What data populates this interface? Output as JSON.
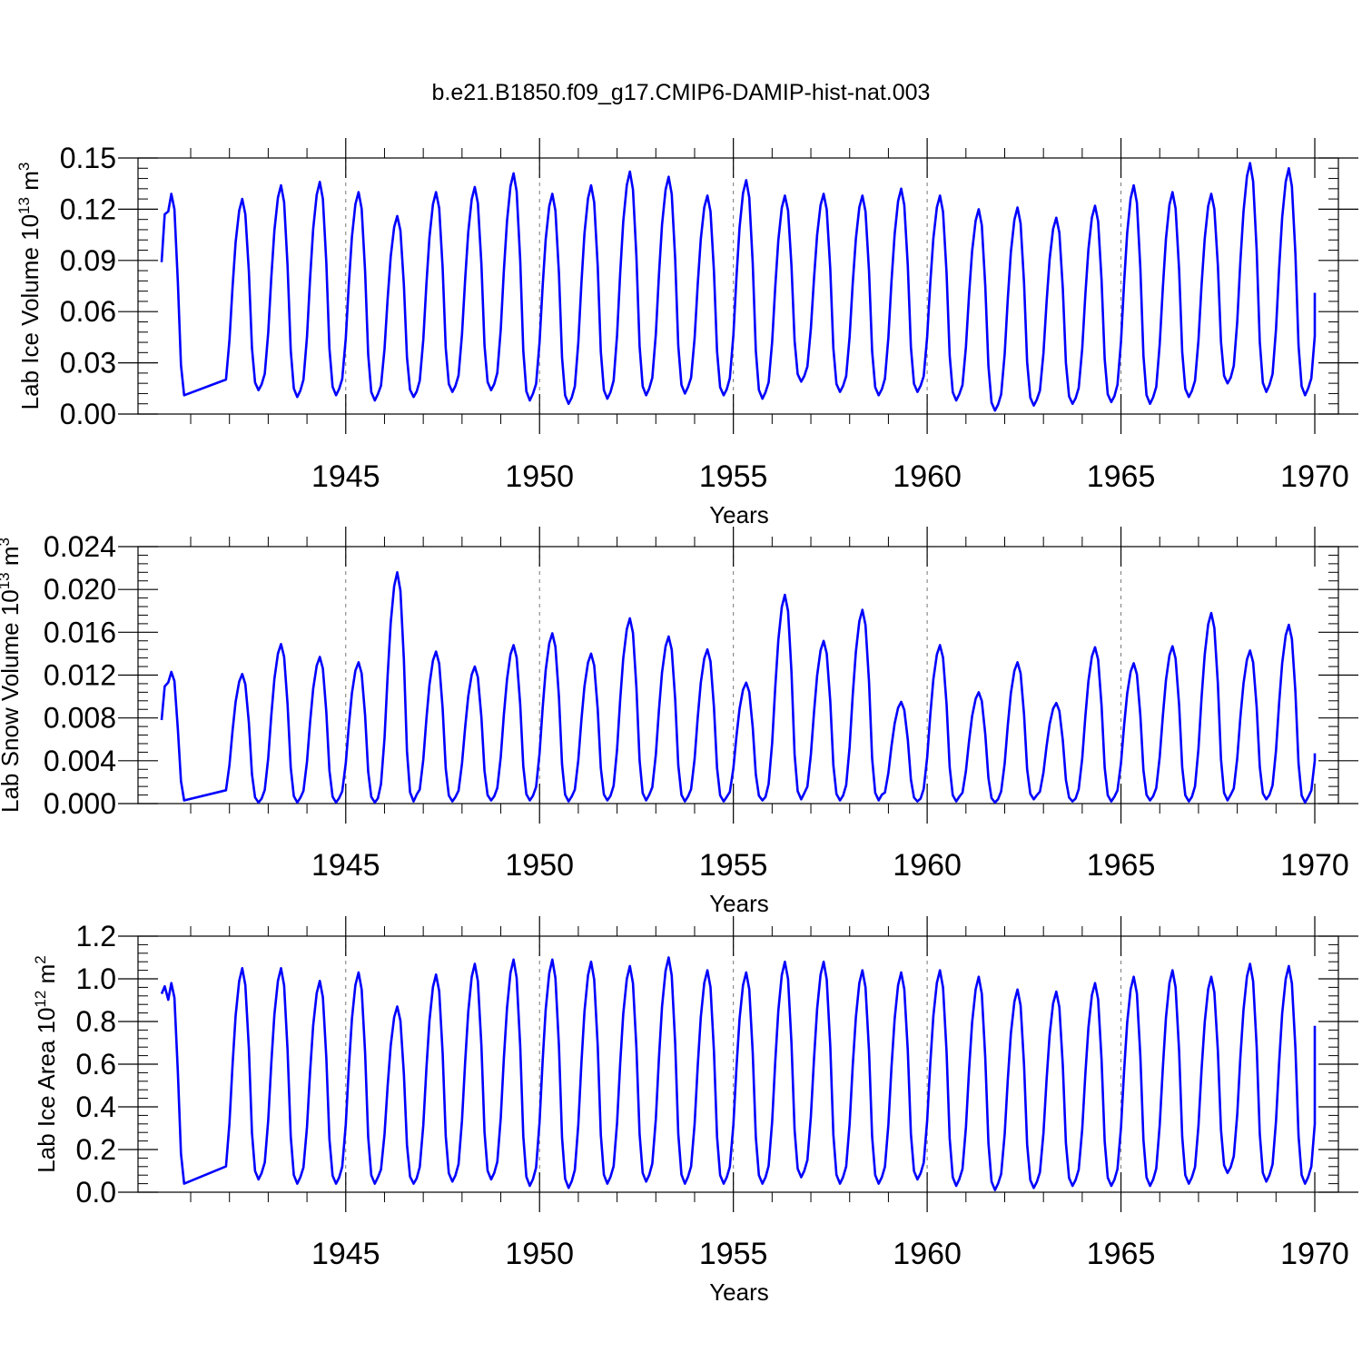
{
  "title": "b.e21.B1850.f09_g17.CMIP6-DAMIP-hist-nat.003",
  "style": {
    "line_color": "#0000ff",
    "frame_color": "#000000",
    "grid_color": "#777777"
  },
  "chart_data": [
    {
      "type": "line",
      "name": "ice-volume",
      "ylabel": "Lab Ice Volume 10",
      "ylabel_exp": "13",
      "ylabel_unit": " m",
      "ylabel_unit_exp": "3",
      "xlabel": "Years",
      "xlim": [
        1940.25,
        1970
      ],
      "ylim": [
        0,
        0.15
      ],
      "yticks": [
        "0.00",
        "0.03",
        "0.06",
        "0.09",
        "0.12",
        "0.15"
      ],
      "ytick_values": [
        0,
        0.03,
        0.06,
        0.09,
        0.12,
        0.15
      ],
      "xticks": [
        "1945",
        "1950",
        "1955",
        "1960",
        "1965",
        "1970"
      ],
      "xtick_values": [
        1945,
        1950,
        1955,
        1960,
        1965,
        1970
      ],
      "vgrid": [
        1945,
        1950,
        1955,
        1960,
        1965
      ],
      "peaks": [
        0.129,
        0.126,
        0.134,
        0.136,
        0.13,
        0.116,
        0.13,
        0.133,
        0.141,
        0.129,
        0.134,
        0.142,
        0.139,
        0.128,
        0.137,
        0.128,
        0.129,
        0.128,
        0.132,
        0.128,
        0.12,
        0.121,
        0.115,
        0.122,
        0.134,
        0.13,
        0.129,
        0.147,
        0.144,
        0.135
      ],
      "troughs": [
        0.011,
        0.014,
        0.01,
        0.011,
        0.008,
        0.01,
        0.013,
        0.014,
        0.008,
        0.006,
        0.009,
        0.011,
        0.012,
        0.011,
        0.009,
        0.019,
        0.013,
        0.011,
        0.013,
        0.008,
        0.002,
        0.005,
        0.006,
        0.007,
        0.006,
        0.01,
        0.018,
        0.013,
        0.011,
        0.013
      ],
      "start_value": 0.089,
      "end_value": 0.071
    },
    {
      "type": "line",
      "name": "snow-volume",
      "ylabel": "Lab Snow Volume 10",
      "ylabel_exp": "13",
      "ylabel_unit": " m",
      "ylabel_unit_exp": "3",
      "xlabel": "Years",
      "xlim": [
        1940.25,
        1970
      ],
      "ylim": [
        0,
        0.024
      ],
      "yticks": [
        "0.000",
        "0.004",
        "0.008",
        "0.012",
        "0.016",
        "0.020",
        "0.024"
      ],
      "ytick_values": [
        0,
        0.004,
        0.008,
        0.012,
        0.016,
        0.02,
        0.024
      ],
      "xticks": [
        "1945",
        "1950",
        "1955",
        "1960",
        "1965",
        "1970"
      ],
      "xtick_values": [
        1945,
        1950,
        1955,
        1960,
        1965,
        1970
      ],
      "vgrid": [
        1945,
        1950,
        1955,
        1960,
        1965
      ],
      "peaks": [
        0.0123,
        0.0121,
        0.0149,
        0.0137,
        0.0132,
        0.0216,
        0.0142,
        0.0128,
        0.0148,
        0.0159,
        0.014,
        0.0173,
        0.0156,
        0.0144,
        0.0113,
        0.0195,
        0.0152,
        0.0181,
        0.0095,
        0.0148,
        0.0104,
        0.0132,
        0.0094,
        0.0146,
        0.0131,
        0.0147,
        0.0178,
        0.0143,
        0.0167,
        0.0141
      ],
      "troughs": [
        0.0003,
        0.0001,
        0.0001,
        0.0001,
        0.0001,
        0.0002,
        0.0002,
        0.0003,
        0.0003,
        0.0002,
        0.0003,
        0.0003,
        0.0002,
        0.0002,
        0.0003,
        0.0004,
        0.0003,
        0.0003,
        0.0002,
        0.0002,
        0.0001,
        0.0004,
        0.0002,
        0.0002,
        0.0003,
        0.0002,
        0.0003,
        0.0004,
        0.0001,
        0.0002
      ],
      "start_value": 0.0078,
      "end_value": 0.0047
    },
    {
      "type": "line",
      "name": "ice-area",
      "ylabel": "Lab Ice Area 10",
      "ylabel_exp": "12",
      "ylabel_unit": " m",
      "ylabel_unit_exp": "2",
      "xlabel": "Years",
      "xlim": [
        1940.25,
        1970
      ],
      "ylim": [
        0,
        1.2
      ],
      "yticks": [
        "0.0",
        "0.2",
        "0.4",
        "0.6",
        "0.8",
        "1.0",
        "1.2"
      ],
      "ytick_values": [
        0,
        0.2,
        0.4,
        0.6,
        0.8,
        1.0,
        1.2
      ],
      "xticks": [
        "1945",
        "1950",
        "1955",
        "1960",
        "1965",
        "1970"
      ],
      "xtick_values": [
        1945,
        1950,
        1955,
        1960,
        1965,
        1970
      ],
      "vgrid": [
        1945,
        1950,
        1955,
        1960,
        1965
      ],
      "peaks": [
        0.98,
        1.05,
        1.05,
        0.99,
        1.03,
        0.87,
        1.02,
        1.07,
        1.09,
        1.09,
        1.08,
        1.06,
        1.1,
        1.04,
        1.03,
        1.08,
        1.08,
        1.04,
        1.03,
        1.04,
        1.01,
        0.95,
        0.94,
        0.98,
        1.01,
        1.04,
        1.01,
        1.07,
        1.06,
        1.04
      ],
      "troughs": [
        0.04,
        0.06,
        0.04,
        0.04,
        0.04,
        0.04,
        0.05,
        0.06,
        0.03,
        0.02,
        0.04,
        0.05,
        0.04,
        0.04,
        0.04,
        0.07,
        0.04,
        0.04,
        0.06,
        0.03,
        0.01,
        0.02,
        0.03,
        0.03,
        0.03,
        0.04,
        0.09,
        0.05,
        0.04,
        0.06
      ],
      "start_value": 0.93,
      "end_value": 0.78
    }
  ]
}
